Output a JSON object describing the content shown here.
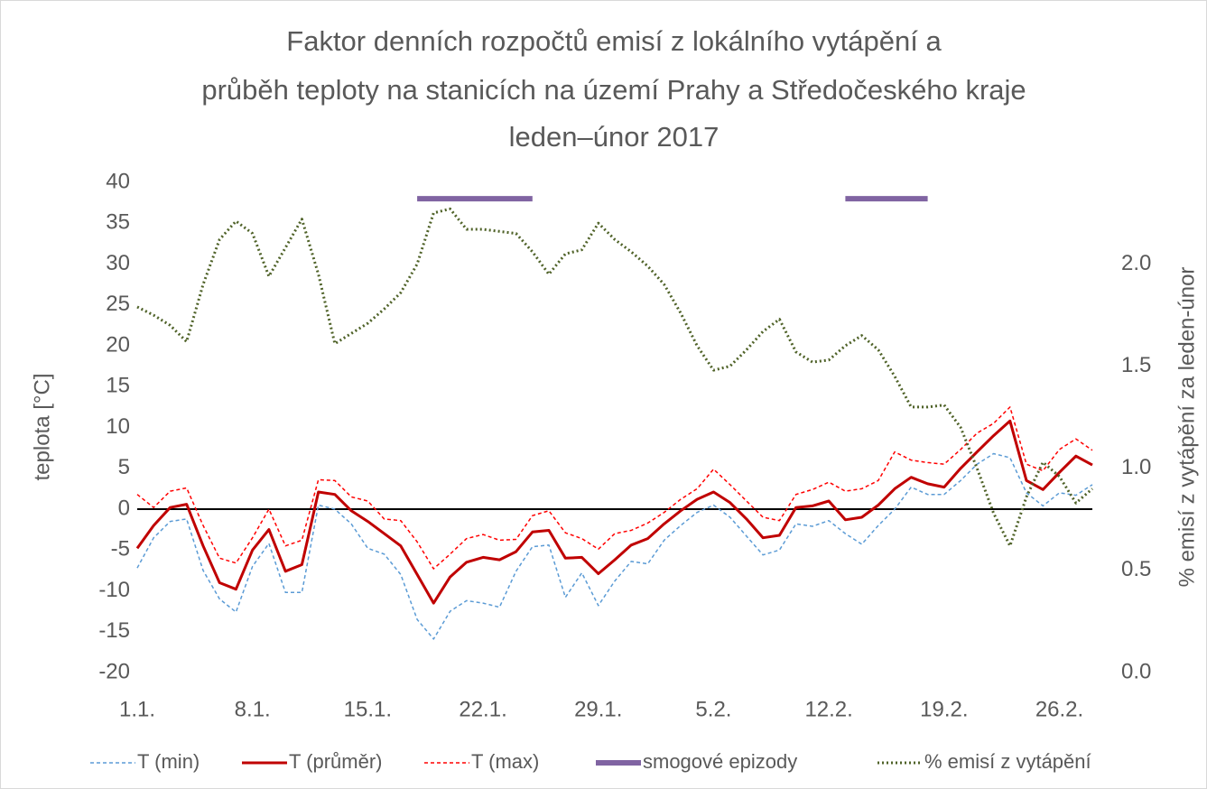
{
  "chart_data": {
    "type": "line",
    "title": [
      "Faktor denních rozpočtů emisí z lokálního vytápění a",
      "průběh teploty na stanicích na území Prahy a Středočeského kraje",
      "leden–únor 2017"
    ],
    "ylabel": "teplota  [°C]",
    "y2label": "% emisí z vytápění za leden-únor",
    "categories": [
      "1.1.",
      null,
      null,
      null,
      null,
      null,
      null,
      "8.1.",
      null,
      null,
      null,
      null,
      null,
      null,
      "15.1.",
      null,
      null,
      null,
      null,
      null,
      null,
      "22.1.",
      null,
      null,
      null,
      null,
      null,
      null,
      "29.1.",
      null,
      null,
      null,
      null,
      null,
      null,
      "5.2.",
      null,
      null,
      null,
      null,
      null,
      null,
      "12.2.",
      null,
      null,
      null,
      null,
      null,
      null,
      "19.2.",
      null,
      null,
      null,
      null,
      null,
      null,
      "26.2.",
      null,
      null
    ],
    "ylim": [
      -20,
      40
    ],
    "yticks": [
      -20,
      -15,
      -10,
      -5,
      0,
      5,
      10,
      15,
      20,
      25,
      30,
      35,
      40
    ],
    "y2lim": [
      0,
      2.4
    ],
    "y2ticks": [
      {
        "value": 0,
        "label": "0.0"
      },
      0.5,
      {
        "value": 1,
        "label": "1.0"
      },
      1.5,
      {
        "value": 2,
        "label": "2.0"
      }
    ],
    "series": [
      {
        "name": "T (min)",
        "color": "#5b9bd5",
        "style": "dashed",
        "values": [
          -7.2,
          -3.5,
          -1.5,
          -1.2,
          -7.5,
          -11,
          -12.6,
          -7,
          -4.2,
          -10.2,
          -10.2,
          0.5,
          0,
          -1.8,
          -4.8,
          -5.5,
          -8,
          -13.5,
          -15.9,
          -12.5,
          -11.2,
          -11.5,
          -12,
          -7.6,
          -4.6,
          -4.4,
          -10.8,
          -7.8,
          -11.8,
          -8.8,
          -6.4,
          -6.7,
          -3.8,
          -2,
          -0.4,
          0.5,
          -1,
          -3.3,
          -5.6,
          -5,
          -1.8,
          -2.1,
          -1.4,
          -3,
          -4.3,
          -2,
          0,
          2.7,
          1.8,
          1.8,
          3.5,
          5.5,
          6.8,
          6.3,
          2,
          0.4,
          2,
          1.7,
          3
        ]
      },
      {
        "name": "T (průměr)",
        "color": "#c00000",
        "style": "solid",
        "values": [
          -4.8,
          -2,
          0.2,
          0.6,
          -4.5,
          -9,
          -9.8,
          -5,
          -2.5,
          -7.6,
          -6.8,
          2.1,
          1.8,
          -0.2,
          -1.5,
          -3,
          -4.5,
          -8,
          -11.5,
          -8.3,
          -6.5,
          -5.9,
          -6.2,
          -5.2,
          -2.8,
          -2.6,
          -6,
          -5.9,
          -7.9,
          -6.2,
          -4.4,
          -3.6,
          -1.8,
          -0.2,
          1.2,
          2.1,
          0.8,
          -1.2,
          -3.5,
          -3.2,
          0.2,
          0.4,
          1,
          -1.3,
          -1,
          0.5,
          2.5,
          3.9,
          3.1,
          2.7,
          5,
          7,
          9,
          10.8,
          3.5,
          2.4,
          4.5,
          6.5,
          5.4
        ]
      },
      {
        "name": "T (max)",
        "color": "#ff0000",
        "style": "dashed",
        "values": [
          1.8,
          0.2,
          2.2,
          2.6,
          -2,
          -6,
          -6.6,
          -3.5,
          0,
          -4.5,
          -3.8,
          3.6,
          3.5,
          1.5,
          1,
          -1.2,
          -1.4,
          -4,
          -7.3,
          -5.5,
          -3.6,
          -3.1,
          -3.8,
          -3.7,
          -0.8,
          -0.2,
          -2.9,
          -3.6,
          -4.9,
          -3,
          -2.6,
          -1.7,
          -0.4,
          1.2,
          2.5,
          4.9,
          3,
          1,
          -1,
          -1.4,
          1.8,
          2.4,
          3.3,
          2.2,
          2.5,
          3.5,
          7,
          6,
          5.7,
          5.5,
          7.3,
          9.3,
          10.5,
          12.5,
          5.5,
          4.7,
          7.3,
          8.6,
          7.2
        ]
      },
      {
        "name": "smogové epizody",
        "color": "#8064a2",
        "style": "thick",
        "values": [
          null,
          null,
          null,
          null,
          null,
          null,
          null,
          null,
          null,
          null,
          null,
          null,
          null,
          null,
          null,
          null,
          null,
          38,
          38,
          38,
          38,
          38,
          38,
          38,
          38,
          null,
          null,
          null,
          null,
          null,
          null,
          null,
          null,
          null,
          null,
          null,
          null,
          null,
          null,
          null,
          null,
          null,
          null,
          38,
          38,
          38,
          38,
          38,
          38,
          null,
          null,
          null,
          null,
          null,
          null,
          null,
          null,
          null,
          null
        ]
      },
      {
        "name": "% emisí z vytápění",
        "color": "#4f6228",
        "style": "dotted",
        "axis": "y2",
        "values": [
          1.79,
          1.75,
          1.7,
          1.62,
          1.9,
          2.12,
          2.21,
          2.15,
          1.94,
          2.08,
          2.22,
          1.95,
          1.61,
          1.66,
          1.71,
          1.78,
          1.86,
          2.0,
          2.25,
          2.27,
          2.17,
          2.17,
          2.16,
          2.15,
          2.06,
          1.95,
          2.05,
          2.07,
          2.2,
          2.12,
          2.06,
          1.99,
          1.9,
          1.76,
          1.6,
          1.48,
          1.5,
          1.58,
          1.67,
          1.73,
          1.57,
          1.52,
          1.53,
          1.6,
          1.65,
          1.58,
          1.45,
          1.3,
          1.3,
          1.31,
          1.2,
          1.0,
          0.78,
          0.62,
          0.86,
          1.03,
          0.96,
          0.83,
          0.9
        ]
      }
    ]
  }
}
